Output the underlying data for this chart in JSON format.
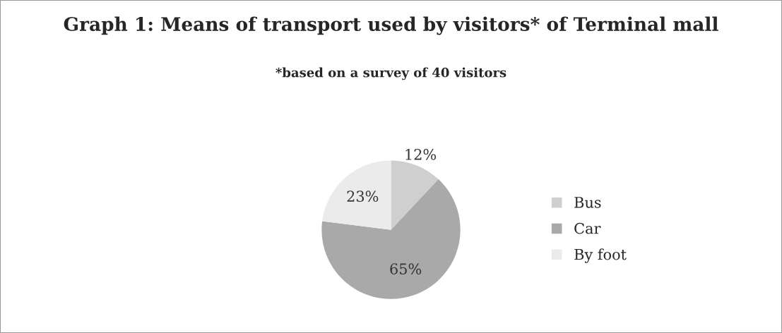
{
  "chart_data": {
    "type": "pie",
    "title": "Graph 1: Means of transport used by visitors* of Terminal mall",
    "subtitle": "*based on a survey of 40 visitors",
    "categories": [
      "Bus",
      "Car",
      "By foot"
    ],
    "values": [
      12,
      65,
      23
    ],
    "colors": [
      "#cfcfcf",
      "#a9a9a9",
      "#ebebeb"
    ],
    "value_labels": [
      "12%",
      "65%",
      "23%"
    ],
    "legend": "right"
  }
}
